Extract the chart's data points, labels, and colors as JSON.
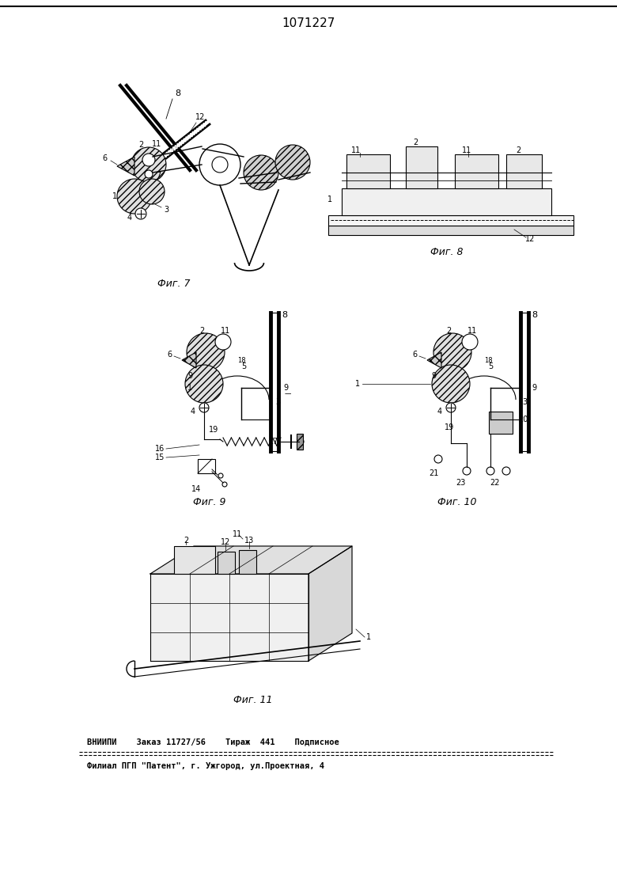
{
  "title": "1071227",
  "footer_line1": "ВНИИПИ    Заказ 11727/56    Тираж  441    Подписное",
  "footer_line2": "Филиал ПГП \"Патент\", г. Ужгород, ул.Проектная, 4",
  "bg_color": "#ffffff",
  "line_color": "#000000"
}
